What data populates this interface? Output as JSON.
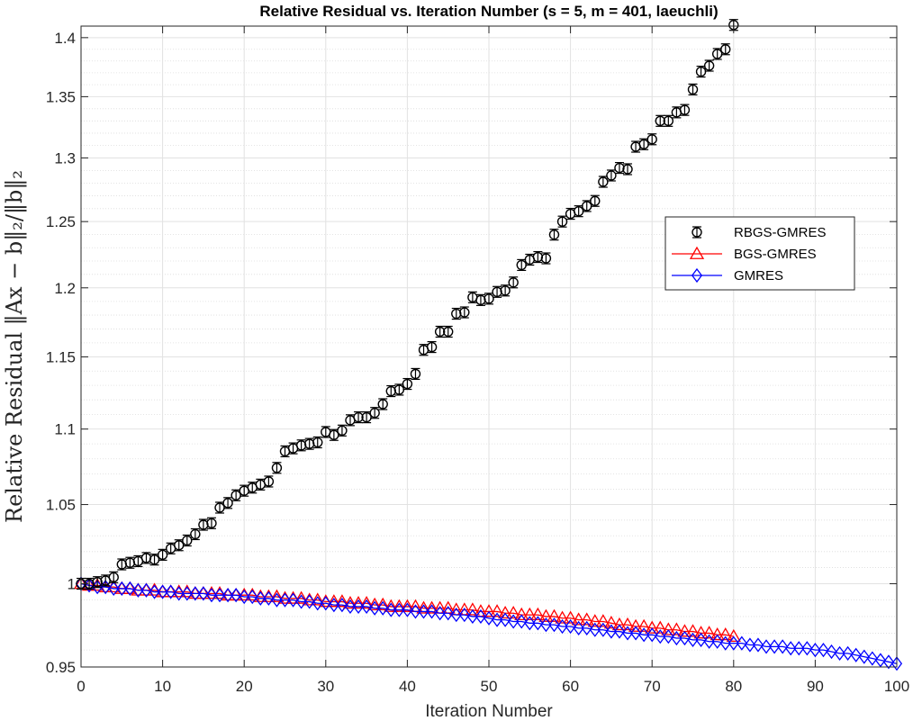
{
  "chart_data": {
    "type": "line",
    "title": "Relative Residual vs. Iteration Number (s = 5, m = 401, laeuchli)",
    "xlabel": "Iteration Number",
    "ylabel": "Relative Residual ‖Ax − b‖₂/‖b‖₂",
    "xlim": [
      0,
      100
    ],
    "ylim": [
      0.95,
      1.41
    ],
    "x_ticks": [
      "0",
      "10",
      "20",
      "30",
      "40",
      "50",
      "60",
      "70",
      "80",
      "90",
      "100"
    ],
    "y_ticks": [
      "0.95",
      "1",
      "1.05",
      "1.1",
      "1.15",
      "1.2",
      "1.25",
      "1.3",
      "1.35",
      "1.4"
    ],
    "y_scale": "log",
    "grid": true,
    "minor_grid": true,
    "legend_position": "right",
    "series": [
      {
        "name": "RBGS-GMRES",
        "style": "errorbar-circle",
        "color": "#000000",
        "x": [
          0,
          1,
          2,
          3,
          4,
          5,
          6,
          7,
          8,
          9,
          10,
          11,
          12,
          13,
          14,
          15,
          16,
          17,
          18,
          19,
          20,
          21,
          22,
          23,
          24,
          25,
          26,
          27,
          28,
          29,
          30,
          31,
          32,
          33,
          34,
          35,
          36,
          37,
          38,
          39,
          40,
          41,
          42,
          43,
          44,
          45,
          46,
          47,
          48,
          49,
          50,
          51,
          52,
          53,
          54,
          55,
          56,
          57,
          58,
          59,
          60,
          61,
          62,
          63,
          64,
          65,
          66,
          67,
          68,
          69,
          70,
          71,
          72,
          73,
          74,
          75,
          76,
          77,
          78,
          79,
          80
        ],
        "y": [
          1.0,
          1.0,
          1.001,
          1.002,
          1.004,
          1.012,
          1.013,
          1.014,
          1.016,
          1.015,
          1.018,
          1.022,
          1.024,
          1.027,
          1.031,
          1.037,
          1.038,
          1.048,
          1.051,
          1.056,
          1.059,
          1.061,
          1.063,
          1.065,
          1.074,
          1.085,
          1.087,
          1.089,
          1.09,
          1.091,
          1.098,
          1.096,
          1.099,
          1.106,
          1.108,
          1.108,
          1.111,
          1.117,
          1.126,
          1.127,
          1.131,
          1.138,
          1.155,
          1.157,
          1.168,
          1.168,
          1.181,
          1.182,
          1.193,
          1.191,
          1.192,
          1.197,
          1.198,
          1.204,
          1.217,
          1.221,
          1.223,
          1.222,
          1.24,
          1.25,
          1.256,
          1.258,
          1.262,
          1.266,
          1.281,
          1.286,
          1.292,
          1.291,
          1.309,
          1.311,
          1.315,
          1.33,
          1.33,
          1.337,
          1.339,
          1.356,
          1.371,
          1.376,
          1.386,
          1.39,
          1.411
        ]
      },
      {
        "name": "BGS-GMRES",
        "style": "triangle",
        "color": "#ff0000",
        "x": [
          0,
          1,
          2,
          3,
          4,
          5,
          6,
          7,
          8,
          9,
          10,
          11,
          12,
          13,
          14,
          15,
          16,
          17,
          18,
          19,
          20,
          21,
          22,
          23,
          24,
          25,
          26,
          27,
          28,
          29,
          30,
          31,
          32,
          33,
          34,
          35,
          36,
          37,
          38,
          39,
          40,
          41,
          42,
          43,
          44,
          45,
          46,
          47,
          48,
          49,
          50,
          51,
          52,
          53,
          54,
          55,
          56,
          57,
          58,
          59,
          60,
          61,
          62,
          63,
          64,
          65,
          66,
          67,
          68,
          69,
          70,
          71,
          72,
          73,
          74,
          75,
          76,
          77,
          78,
          79,
          80
        ],
        "y": [
          1.0,
          0.999,
          0.999,
          0.998,
          0.998,
          0.997,
          0.997,
          0.996,
          0.996,
          0.996,
          0.995,
          0.995,
          0.995,
          0.995,
          0.994,
          0.994,
          0.994,
          0.994,
          0.993,
          0.993,
          0.993,
          0.993,
          0.992,
          0.992,
          0.992,
          0.991,
          0.991,
          0.991,
          0.99,
          0.99,
          0.989,
          0.989,
          0.989,
          0.988,
          0.988,
          0.988,
          0.987,
          0.987,
          0.986,
          0.986,
          0.986,
          0.986,
          0.985,
          0.985,
          0.985,
          0.985,
          0.984,
          0.984,
          0.984,
          0.983,
          0.983,
          0.983,
          0.982,
          0.982,
          0.981,
          0.981,
          0.981,
          0.98,
          0.98,
          0.979,
          0.979,
          0.978,
          0.978,
          0.977,
          0.977,
          0.976,
          0.975,
          0.975,
          0.974,
          0.974,
          0.973,
          0.973,
          0.972,
          0.972,
          0.971,
          0.971,
          0.97,
          0.97,
          0.969,
          0.969,
          0.968
        ]
      },
      {
        "name": "GMRES",
        "style": "diamond",
        "color": "#0000ff",
        "x": [
          0,
          1,
          2,
          3,
          4,
          5,
          6,
          7,
          8,
          9,
          10,
          11,
          12,
          13,
          14,
          15,
          16,
          17,
          18,
          19,
          20,
          21,
          22,
          23,
          24,
          25,
          26,
          27,
          28,
          29,
          30,
          31,
          32,
          33,
          34,
          35,
          36,
          37,
          38,
          39,
          40,
          41,
          42,
          43,
          44,
          45,
          46,
          47,
          48,
          49,
          50,
          51,
          52,
          53,
          54,
          55,
          56,
          57,
          58,
          59,
          60,
          61,
          62,
          63,
          64,
          65,
          66,
          67,
          68,
          69,
          70,
          71,
          72,
          73,
          74,
          75,
          76,
          77,
          78,
          79,
          80,
          81,
          82,
          83,
          84,
          85,
          86,
          87,
          88,
          89,
          90,
          91,
          92,
          93,
          94,
          95,
          96,
          97,
          98,
          99,
          100
        ],
        "y": [
          1.0,
          0.999,
          0.998,
          0.998,
          0.997,
          0.997,
          0.997,
          0.996,
          0.996,
          0.995,
          0.995,
          0.995,
          0.994,
          0.994,
          0.994,
          0.994,
          0.993,
          0.993,
          0.993,
          0.993,
          0.992,
          0.992,
          0.991,
          0.991,
          0.99,
          0.99,
          0.99,
          0.989,
          0.989,
          0.988,
          0.988,
          0.987,
          0.987,
          0.986,
          0.986,
          0.986,
          0.985,
          0.985,
          0.984,
          0.984,
          0.984,
          0.983,
          0.983,
          0.983,
          0.982,
          0.982,
          0.981,
          0.981,
          0.98,
          0.98,
          0.979,
          0.978,
          0.978,
          0.977,
          0.977,
          0.976,
          0.976,
          0.975,
          0.975,
          0.974,
          0.974,
          0.973,
          0.973,
          0.972,
          0.972,
          0.971,
          0.971,
          0.97,
          0.97,
          0.969,
          0.969,
          0.968,
          0.968,
          0.967,
          0.967,
          0.966,
          0.966,
          0.965,
          0.965,
          0.964,
          0.964,
          0.964,
          0.963,
          0.963,
          0.962,
          0.962,
          0.962,
          0.961,
          0.961,
          0.961,
          0.96,
          0.96,
          0.959,
          0.958,
          0.958,
          0.957,
          0.956,
          0.955,
          0.954,
          0.953,
          0.952
        ]
      }
    ]
  }
}
